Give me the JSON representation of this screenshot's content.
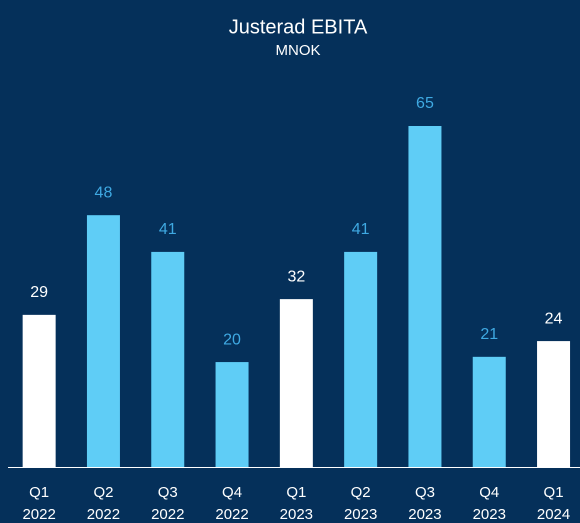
{
  "chart_data": {
    "type": "bar",
    "title": "Justerad EBITA",
    "subtitle": "MNOK",
    "categories": [
      [
        "Q1",
        "2022"
      ],
      [
        "Q2",
        "2022"
      ],
      [
        "Q3",
        "2022"
      ],
      [
        "Q4",
        "2022"
      ],
      [
        "Q1",
        "2023"
      ],
      [
        "Q2",
        "2023"
      ],
      [
        "Q3",
        "2023"
      ],
      [
        "Q4",
        "2023"
      ],
      [
        "Q1",
        "2024"
      ]
    ],
    "values": [
      29,
      48,
      41,
      20,
      32,
      41,
      65,
      21,
      24
    ],
    "colors": [
      "#ffffff",
      "#5fcdf6",
      "#5fcdf6",
      "#5fcdf6",
      "#ffffff",
      "#5fcdf6",
      "#5fcdf6",
      "#5fcdf6",
      "#ffffff"
    ],
    "label_colors": [
      "#ffffff",
      "#3fa9e2",
      "#3fa9e2",
      "#3fa9e2",
      "#ffffff",
      "#3fa9e2",
      "#3fa9e2",
      "#3fa9e2",
      "#ffffff"
    ],
    "background": "#05305a"
  }
}
